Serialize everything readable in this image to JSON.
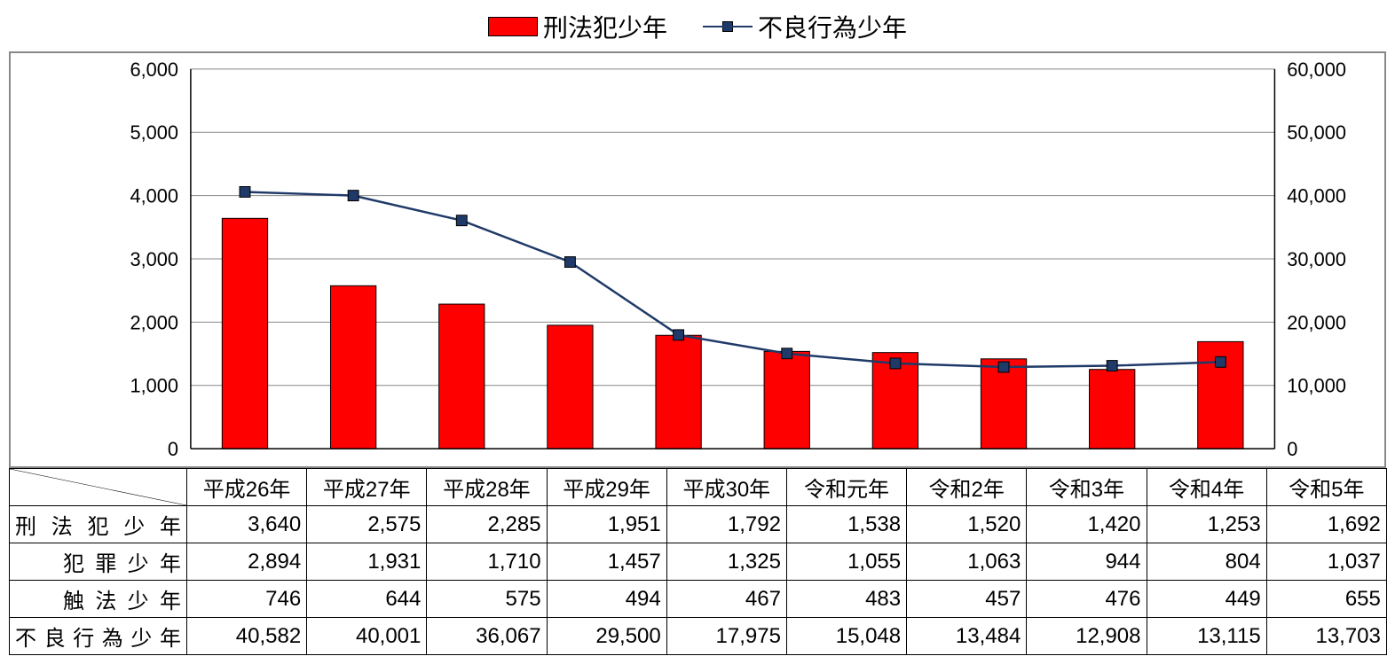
{
  "legend": {
    "bar_label": "刑法犯少年",
    "line_label": "不良行為少年"
  },
  "chart": {
    "type": "bar+line",
    "categories": [
      "平成26年",
      "平成27年",
      "平成28年",
      "平成29年",
      "平成30年",
      "令和元年",
      "令和2年",
      "令和3年",
      "令和4年",
      "令和5年"
    ],
    "bar_series": {
      "name": "刑法犯少年",
      "values": [
        3640,
        2575,
        2285,
        1951,
        1792,
        1538,
        1520,
        1420,
        1253,
        1692
      ],
      "color": "#ff0000",
      "border_color": "#000000",
      "bar_width": 0.42
    },
    "line_series": {
      "name": "不良行為少年",
      "values": [
        40582,
        40001,
        36067,
        29500,
        17975,
        15048,
        13484,
        12908,
        13115,
        13703
      ],
      "color": "#1f3a68",
      "marker_color": "#1f3a68",
      "marker_shape": "square",
      "marker_size": 12
    },
    "y_left": {
      "min": 0,
      "max": 6000,
      "step": 1000,
      "labels": [
        "0",
        "1,000",
        "2,000",
        "3,000",
        "4,000",
        "5,000",
        "6,000"
      ]
    },
    "y_right": {
      "min": 0,
      "max": 60000,
      "step": 10000,
      "labels": [
        "0",
        "10,000",
        "20,000",
        "30,000",
        "40,000",
        "50,000",
        "60,000"
      ]
    },
    "background_color": "#ffffff",
    "grid_color": "#888888",
    "plot_border_color": "#888888",
    "axis_fontsize": 22,
    "legend_fontsize": 28
  },
  "table": {
    "columns": [
      "平成26年",
      "平成27年",
      "平成28年",
      "平成29年",
      "平成30年",
      "令和元年",
      "令和2年",
      "令和3年",
      "令和4年",
      "令和5年"
    ],
    "rows": [
      {
        "label": "刑法犯少年",
        "indent": false,
        "values": [
          "3,640",
          "2,575",
          "2,285",
          "1,951",
          "1,792",
          "1,538",
          "1,520",
          "1,420",
          "1,253",
          "1,692"
        ]
      },
      {
        "label": "犯罪少年",
        "indent": true,
        "values": [
          "2,894",
          "1,931",
          "1,710",
          "1,457",
          "1,325",
          "1,055",
          "1,063",
          "944",
          "804",
          "1,037"
        ]
      },
      {
        "label": "触法少年",
        "indent": true,
        "values": [
          "746",
          "644",
          "575",
          "494",
          "467",
          "483",
          "457",
          "476",
          "449",
          "655"
        ]
      },
      {
        "label": "不良行為少年",
        "indent": false,
        "values": [
          "40,582",
          "40,001",
          "36,067",
          "29,500",
          "17,975",
          "15,048",
          "13,484",
          "12,908",
          "13,115",
          "13,703"
        ]
      }
    ],
    "header_cell_width_first": 200,
    "cell_fontsize": 24
  },
  "colors": {
    "bar_fill": "#ff0000",
    "line_stroke": "#1f3a68",
    "marker_fill": "#1f3a68",
    "grid": "#888888",
    "border": "#000000",
    "background": "#ffffff"
  }
}
